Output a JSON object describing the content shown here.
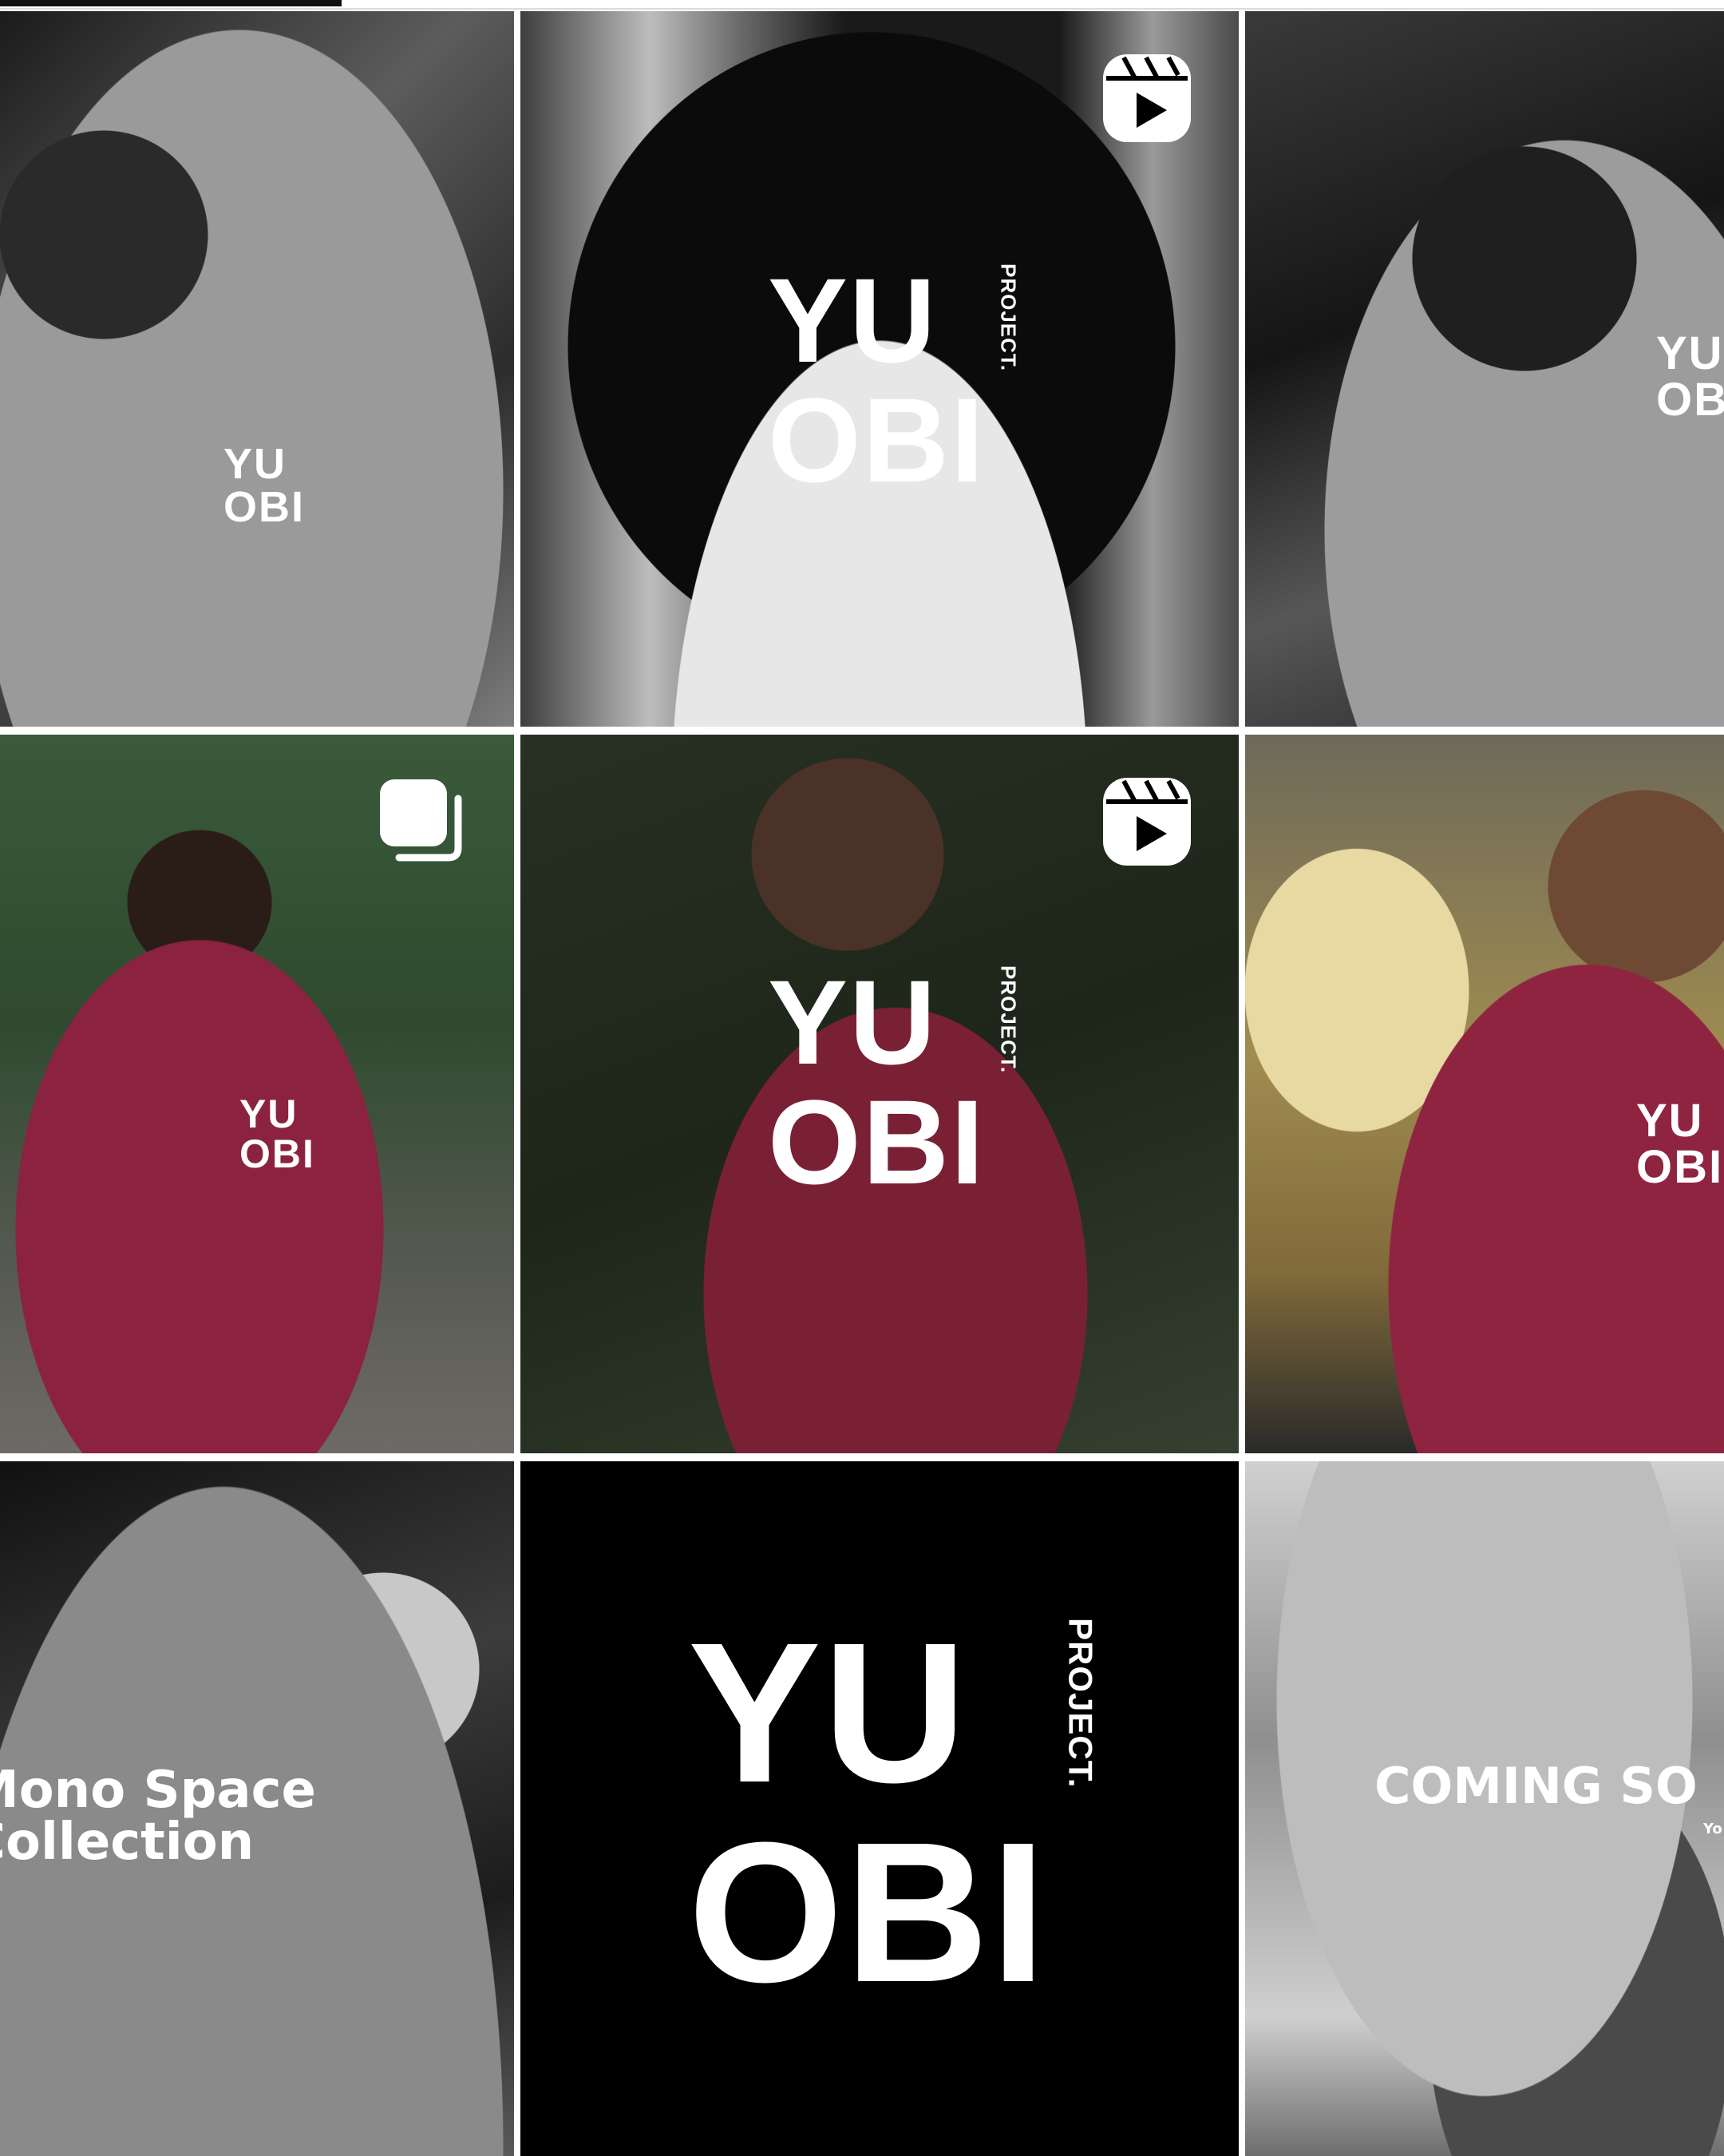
{
  "tab_indicator": {
    "selected": "posts"
  },
  "tiles": [
    {
      "id": "post-1",
      "badge": "none",
      "logo_l1": "YU",
      "logo_l2": "OBI"
    },
    {
      "id": "post-2",
      "badge": "reel-icon",
      "logo_l1": "YU",
      "logo_l2": "OBI",
      "logo_tag": "PROJECT."
    },
    {
      "id": "post-3",
      "badge": "none",
      "logo_l1": "YU",
      "logo_l2": "OBI"
    },
    {
      "id": "post-4",
      "badge": "carousel-icon",
      "logo_l1": "YU",
      "logo_l2": "OBI"
    },
    {
      "id": "post-5",
      "badge": "reel-icon",
      "logo_l1": "YU",
      "logo_l2": "OBI",
      "logo_tag": "PROJECT."
    },
    {
      "id": "post-6",
      "badge": "none",
      "logo_l1": "YU",
      "logo_l2": "OBI"
    },
    {
      "id": "post-7",
      "badge": "none",
      "overlay_line1": "Mono Space",
      "overlay_line2": "Collection"
    },
    {
      "id": "post-8",
      "badge": "none",
      "logo_l1": "YU",
      "logo_l2": "OBI",
      "logo_tag": "PROJECT."
    },
    {
      "id": "post-9",
      "badge": "none",
      "overlay_line1": "COMING SO",
      "overlay_sub": "Yo"
    }
  ],
  "colors": {
    "background": "#ffffff",
    "tab_underline": "#111111",
    "maroon_shirt": "#8a2240",
    "logo": "#ffffff"
  }
}
